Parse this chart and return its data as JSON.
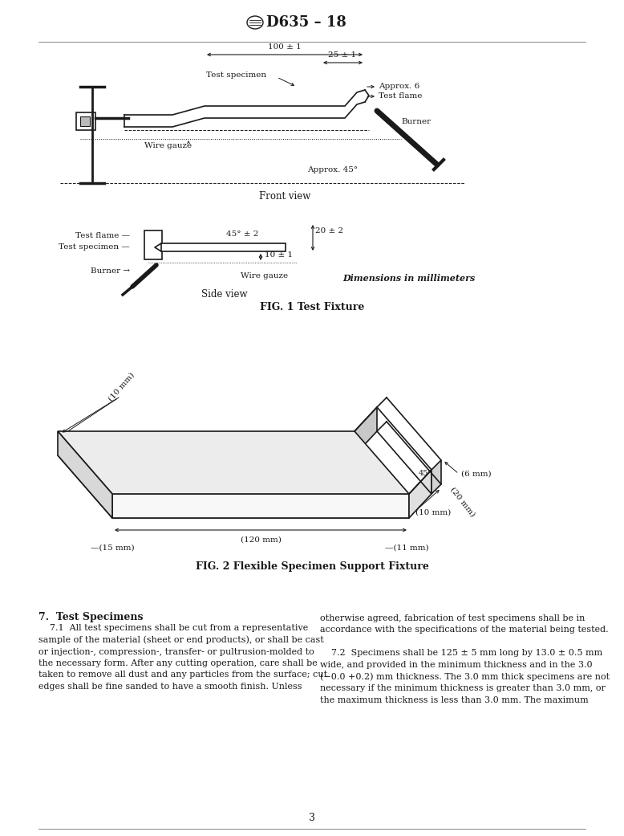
{
  "title": "D635 – 18",
  "page_number": "3",
  "background_color": "#ffffff",
  "text_color": "#1a1a1a",
  "fig1_caption": "FIG. 1 Test Fixture",
  "fig2_caption": "FIG. 2 Flexible Specimen Support Fixture",
  "dim_label": "Dimensions in millimeters",
  "section_header": "7.  Test Specimens",
  "para1_left": "    7.1  All test specimens shall be cut from a representative\nsample of the material (sheet or end products), or shall be cast\nor injection-, compression-, transfer- or pultrusion-molded to\nthe necessary form. After any cutting operation, care shall be\ntaken to remove all dust and any particles from the surface; cut\nedges shall be fine sanded to have a smooth finish. Unless",
  "para1_right": "otherwise agreed, fabrication of test specimens shall be in\naccordance with the specifications of the material being tested.\n\n    7.2  Specimens shall be 125 ± 5 mm long by 13.0 ± 0.5 mm\nwide, and provided in the minimum thickness and in the 3.0\n(−0.0 +0.2) mm thickness. The 3.0 mm thick specimens are not\nnecessary if the minimum thickness is greater than 3.0 mm, or\nthe maximum thickness is less than 3.0 mm. The maximum"
}
